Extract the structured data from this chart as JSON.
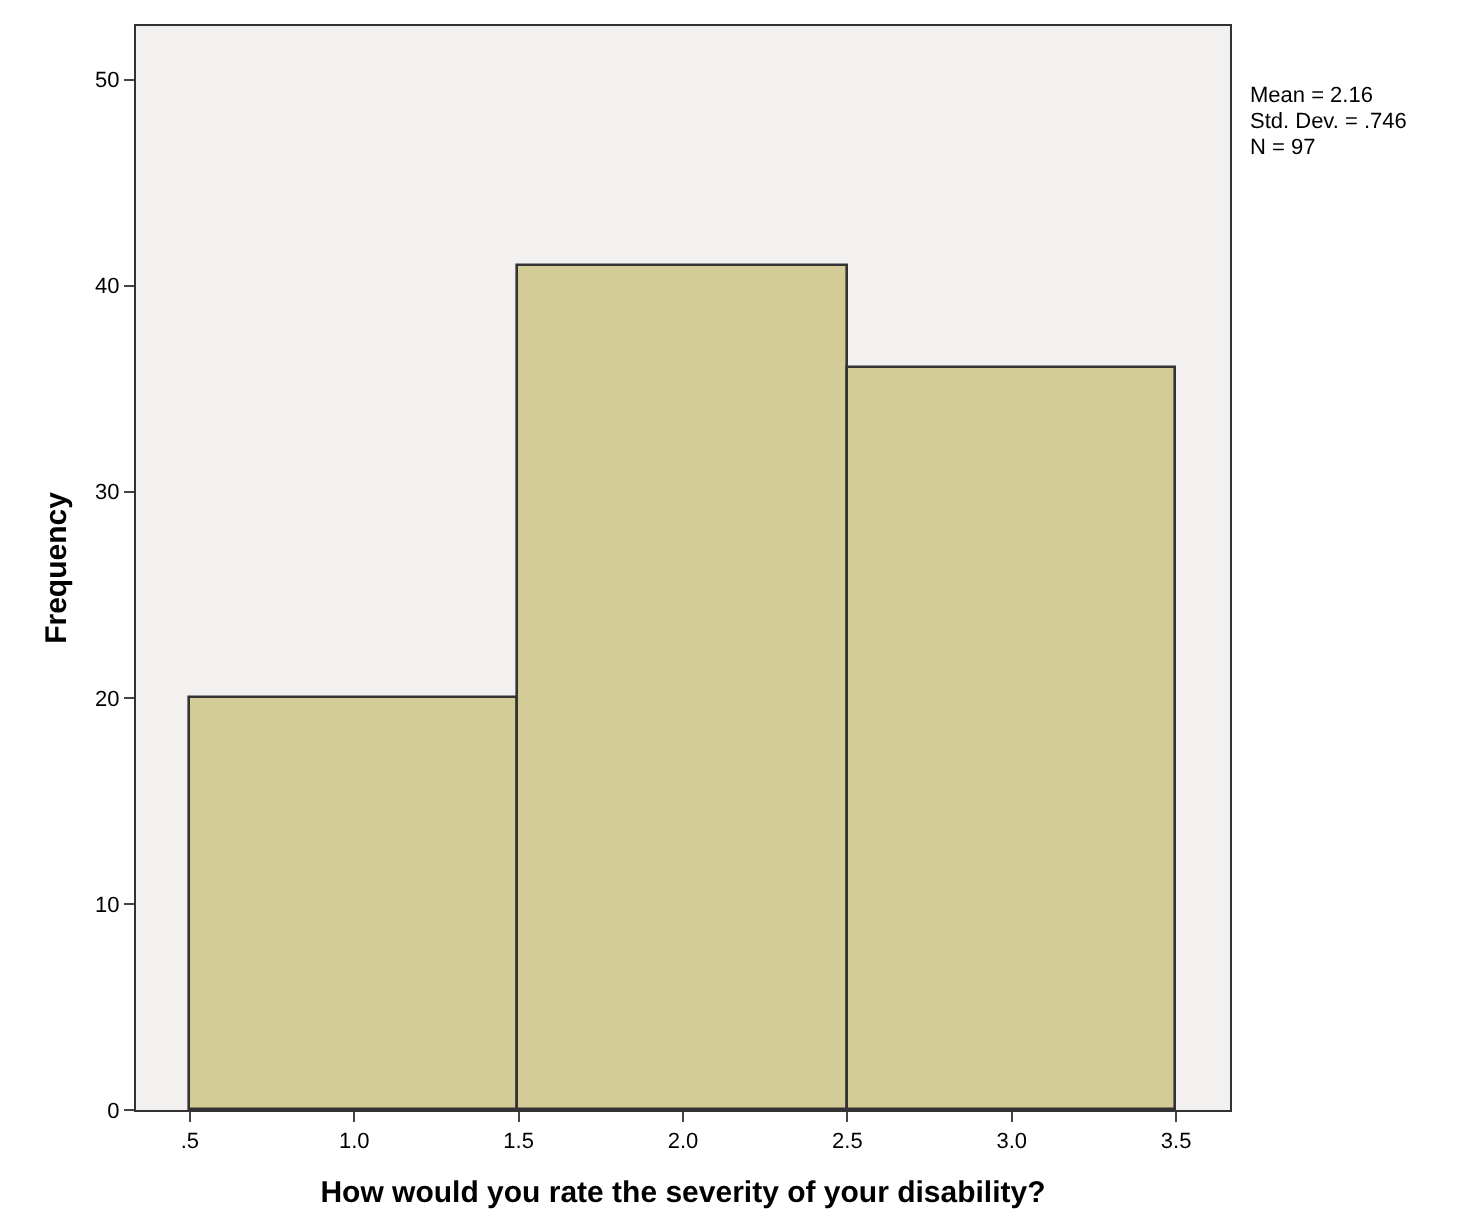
{
  "chart_data": {
    "type": "histogram",
    "xlabel": "How would you rate the severity of your disability?",
    "ylabel": "Frequency",
    "bins": [
      0.5,
      1.5,
      2.5,
      3.5
    ],
    "values": [
      20,
      41,
      36
    ],
    "color": "#d3cc96",
    "xlim": [
      0.336,
      3.664
    ],
    "xticks": [
      {
        "value": 0.5,
        "label": ".5"
      },
      {
        "value": 1.0,
        "label": "1.0"
      },
      {
        "value": 1.5,
        "label": "1.5"
      },
      {
        "value": 2.0,
        "label": "2.0"
      },
      {
        "value": 2.5,
        "label": "2.5"
      },
      {
        "value": 3.0,
        "label": "3.0"
      },
      {
        "value": 3.5,
        "label": "3.5"
      }
    ],
    "ylim": [
      0,
      52.6
    ],
    "yticks": [
      0,
      10,
      20,
      30,
      40,
      50
    ],
    "annotations": [
      "Mean = 2.16",
      "Std. Dev. = .746",
      "N = 97"
    ],
    "grid": false
  }
}
